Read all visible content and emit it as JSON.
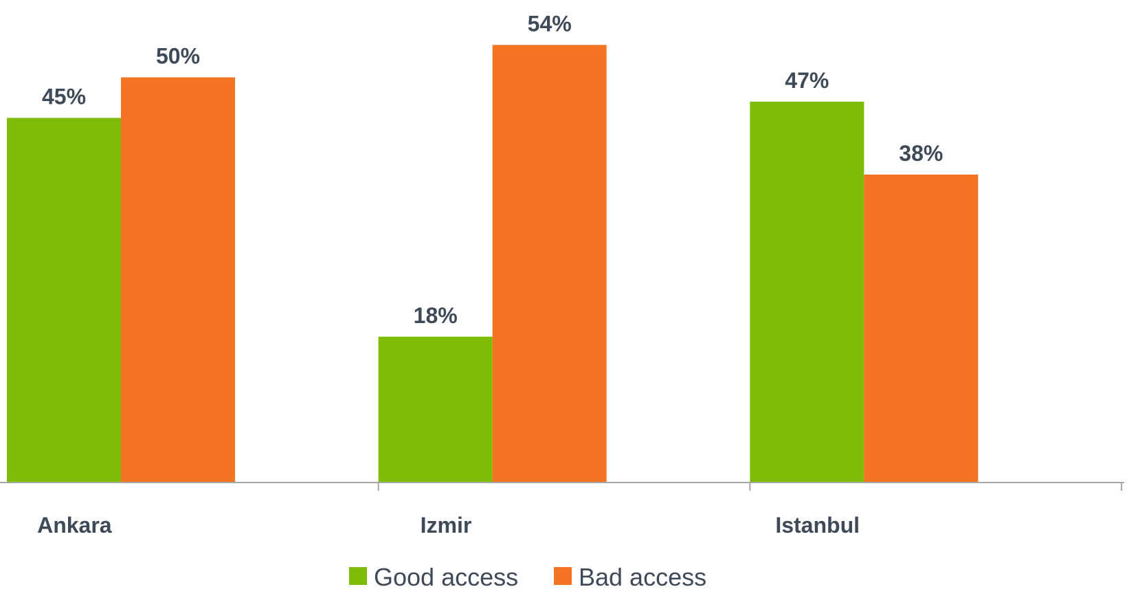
{
  "chart_data": {
    "type": "bar",
    "categories": [
      "Ankara",
      "Izmir",
      "Istanbul"
    ],
    "series": [
      {
        "name": "Good access",
        "values": [
          45,
          18,
          47
        ],
        "color": "#7fbc08"
      },
      {
        "name": "Bad access",
        "values": [
          50,
          54,
          38
        ],
        "color": "#f47423"
      }
    ],
    "value_suffix": "%",
    "ylim": [
      0,
      57
    ],
    "title": "",
    "xlabel": "",
    "ylabel": "",
    "grid": false,
    "legend_position": "bottom",
    "axis_color": "#a6a6a6",
    "label_color": "#3f4a58"
  }
}
